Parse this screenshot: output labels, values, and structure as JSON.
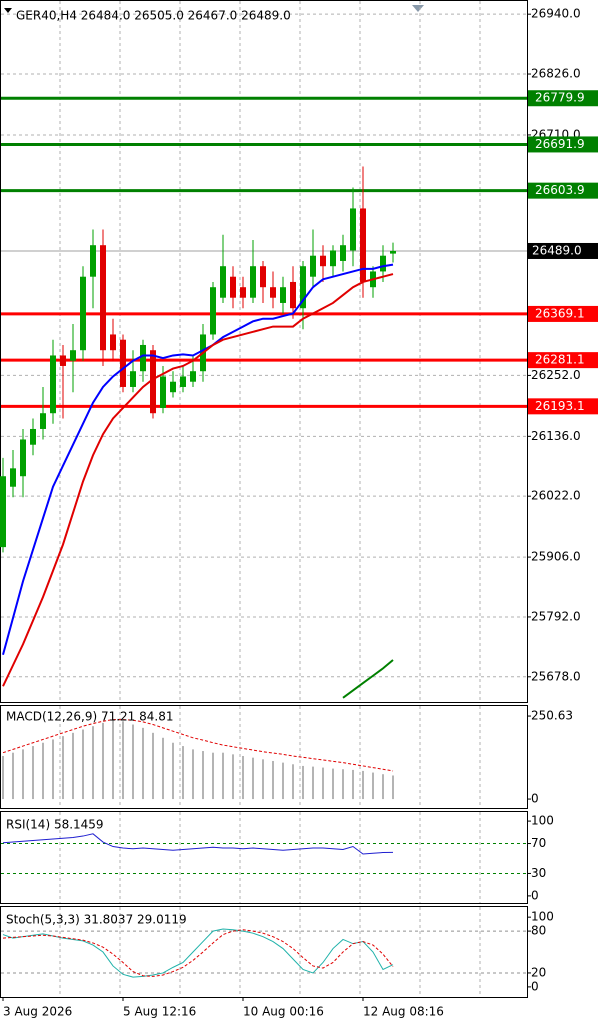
{
  "chart_data": [
    {
      "type": "candlestick",
      "title": "GER40,H4  26484.0 26505.0 26467.0 26489.0",
      "open": [
        25925,
        26040,
        26060,
        26120,
        26150,
        26180,
        26290,
        26280,
        26300,
        26440,
        26500,
        26330,
        26320,
        26230,
        26260,
        26300,
        26190,
        26220,
        26230,
        26240,
        26260,
        26330,
        26400,
        26440,
        26420,
        26400,
        26460,
        26420,
        26390,
        26430,
        26380,
        26440,
        26480,
        26460,
        26470,
        26490,
        26570,
        26420,
        26450,
        26484
      ],
      "high": [
        26095,
        26110,
        26150,
        26170,
        26230,
        26320,
        26310,
        26350,
        26460,
        26530,
        26530,
        26360,
        26330,
        26300,
        26320,
        26310,
        26270,
        26260,
        26270,
        26290,
        26350,
        26430,
        26520,
        26460,
        26440,
        26510,
        26470,
        26450,
        26440,
        26460,
        26470,
        26530,
        26500,
        26500,
        26520,
        26610,
        26650,
        26460,
        26500,
        26505
      ],
      "low": [
        25915,
        26020,
        26020,
        26100,
        26130,
        26160,
        26170,
        26220,
        26280,
        26380,
        26270,
        26280,
        26220,
        26220,
        26240,
        26170,
        26180,
        26210,
        26220,
        26230,
        26240,
        26320,
        26390,
        26380,
        26380,
        26390,
        26390,
        26380,
        26370,
        26360,
        26340,
        26420,
        26430,
        26440,
        26450,
        26460,
        26400,
        26400,
        26430,
        26467
      ],
      "close": [
        26060,
        26075,
        26130,
        26150,
        26180,
        26290,
        26270,
        26300,
        26440,
        26500,
        26300,
        26300,
        26230,
        26260,
        26310,
        26180,
        26250,
        26240,
        26250,
        26260,
        26330,
        26420,
        26460,
        26400,
        26400,
        26460,
        26420,
        26400,
        26420,
        26380,
        26460,
        26480,
        26460,
        26490,
        26500,
        26570,
        26430,
        26450,
        26480,
        26489
      ],
      "up_color": "#00a000",
      "down_color": "#e00000",
      "lines": [
        {
          "color": "#0000ff",
          "values": [
            25720,
            25790,
            25860,
            25920,
            25980,
            26040,
            26080,
            26120,
            26160,
            26200,
            26230,
            26250,
            26265,
            26280,
            26290,
            26290,
            26285,
            26290,
            26292,
            26290,
            26300,
            26310,
            26325,
            26335,
            26345,
            26355,
            26360,
            26360,
            26365,
            26370,
            26395,
            26420,
            26435,
            26440,
            26445,
            26450,
            26455,
            26455,
            26460,
            26463
          ]
        },
        {
          "color": "#e00000",
          "values": [
            25660,
            25700,
            25740,
            25785,
            25830,
            25880,
            25930,
            25990,
            26050,
            26100,
            26140,
            26170,
            26190,
            26210,
            26230,
            26245,
            26255,
            26265,
            26270,
            26280,
            26295,
            26310,
            26320,
            26325,
            26330,
            26335,
            26340,
            26345,
            26345,
            26345,
            26360,
            26370,
            26380,
            26390,
            26405,
            26420,
            26430,
            26435,
            26440,
            26445
          ]
        },
        {
          "color": "#008000",
          "values": [
            null,
            null,
            null,
            null,
            null,
            null,
            null,
            null,
            null,
            null,
            null,
            null,
            null,
            null,
            null,
            null,
            null,
            null,
            null,
            null,
            null,
            null,
            null,
            null,
            null,
            null,
            null,
            null,
            null,
            null,
            null,
            null,
            null,
            null,
            25638,
            25652,
            25666,
            25680,
            25694,
            25710
          ]
        }
      ],
      "levels": [
        {
          "value": 26779.9,
          "color": "#008000"
        },
        {
          "value": 26691.9,
          "color": "#008000"
        },
        {
          "value": 26603.9,
          "color": "#008000"
        },
        {
          "value": 26369.1,
          "color": "#ff0000"
        },
        {
          "value": 26281.1,
          "color": "#ff0000"
        },
        {
          "value": 26193.1,
          "color": "#ff0000"
        }
      ],
      "current_price": {
        "value": 26489,
        "label": "26489.0"
      },
      "ylim": [
        25630,
        26967
      ],
      "yticks": [
        {
          "value": 26940,
          "label": "26940.0"
        },
        {
          "value": 26826,
          "label": "26826.0"
        },
        {
          "value": 26710,
          "label": "26710.0"
        },
        {
          "value": 26252,
          "label": "26252.0"
        },
        {
          "value": 26136,
          "label": "26136.0"
        },
        {
          "value": 26022,
          "label": "26022.0"
        },
        {
          "value": 25906,
          "label": "25906.0"
        },
        {
          "value": 25792,
          "label": "25792.0"
        },
        {
          "value": 25678,
          "label": "25678.0"
        }
      ],
      "grid": true
    },
    {
      "type": "macd",
      "title": "MACD(12,26,9) 71.21 84.81",
      "values": [
        130,
        140,
        150,
        160,
        170,
        180,
        190,
        200,
        210,
        220,
        230,
        240,
        235,
        225,
        215,
        200,
        185,
        170,
        160,
        150,
        145,
        140,
        140,
        135,
        130,
        125,
        120,
        115,
        110,
        105,
        100,
        98,
        95,
        92,
        90,
        88,
        85,
        80,
        75,
        71.21
      ],
      "signal": [
        140,
        150,
        160,
        170,
        180,
        190,
        200,
        210,
        220,
        228,
        235,
        240,
        240,
        238,
        233,
        225,
        215,
        205,
        195,
        185,
        178,
        170,
        163,
        158,
        153,
        148,
        143,
        139,
        135,
        130,
        126,
        122,
        118,
        114,
        110,
        105,
        100,
        95,
        90,
        84.81
      ],
      "color": "#b4b4b4",
      "signal_color": "#e00000",
      "ylim": [
        -27,
        284
      ],
      "yticks": [
        250.63,
        0
      ]
    },
    {
      "type": "rsi",
      "title": "RSI(14) 58.1459",
      "values": [
        71,
        72,
        73,
        74,
        75,
        76,
        77,
        78,
        80,
        83,
        72,
        66,
        64,
        63,
        64,
        63,
        62,
        61,
        62,
        63,
        64,
        65,
        64,
        64,
        63,
        64,
        63,
        62,
        61,
        62,
        63,
        64,
        64,
        63,
        62,
        66,
        56,
        57,
        58,
        58.1459
      ],
      "color": "#1f1fd0",
      "levels": [
        70,
        30
      ],
      "level_color": "#008000",
      "ylim": [
        -9.5,
        113.5
      ],
      "yticks": [
        100,
        70,
        30,
        0
      ]
    },
    {
      "type": "stochastic",
      "title": "Stoch(5,3,3) 31.8037 29.0119",
      "values": [
        75,
        70,
        72,
        74,
        76,
        73,
        70,
        68,
        66,
        60,
        50,
        30,
        18,
        14,
        15,
        17,
        20,
        28,
        35,
        50,
        65,
        80,
        83,
        82,
        80,
        77,
        72,
        65,
        55,
        40,
        25,
        20,
        35,
        55,
        68,
        62,
        65,
        50,
        25,
        31.8037
      ],
      "signal": [
        70,
        71,
        72,
        73,
        74,
        73,
        71,
        69,
        67,
        63,
        57,
        47,
        35,
        22,
        16,
        15,
        17,
        22,
        28,
        38,
        50,
        63,
        75,
        80,
        82,
        80,
        77,
        72,
        65,
        55,
        42,
        30,
        27,
        35,
        50,
        62,
        65,
        60,
        47,
        29.0119
      ],
      "color": "#20b2aa",
      "signal_color": "#e00000",
      "levels": [
        80,
        20
      ],
      "level_color": "#909090",
      "ylim": [
        -14.5,
        116
      ],
      "yticks": [
        100,
        80,
        20,
        0
      ],
      "xticks": [
        {
          "value": 0,
          "label": "3 Aug 2026"
        },
        {
          "value": 12,
          "label": "5 Aug 12:16"
        },
        {
          "value": 24,
          "label": "10 Aug 00:16"
        },
        {
          "value": 36,
          "label": "12 Aug 08:16"
        }
      ]
    }
  ]
}
